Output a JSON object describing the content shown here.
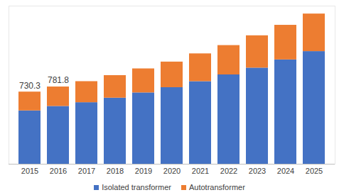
{
  "chart_data": {
    "type": "bar",
    "stacked": true,
    "tick_labels": "x",
    "grid": false,
    "categories": [
      "2015",
      "2016",
      "2017",
      "2018",
      "2019",
      "2020",
      "2021",
      "2022",
      "2023",
      "2024",
      "2025"
    ],
    "series": [
      {
        "name": "Isolated transformer",
        "color": "#4472c4",
        "values": [
          540,
          585,
          623,
          669,
          722,
          775,
          836,
          904,
          973,
          1056,
          1140
        ]
      },
      {
        "name": "Autotransformer",
        "color": "#ed7d31",
        "values": [
          190.3,
          196.8,
          213,
          228,
          243,
          259,
          281,
          297,
          327,
          350,
          380
        ]
      }
    ],
    "annotations": [
      {
        "category": "2015",
        "value": 730.3
      },
      {
        "category": "2016",
        "value": 781.8
      }
    ],
    "ylim": [
      0,
      1600
    ],
    "legend": "bottom"
  }
}
